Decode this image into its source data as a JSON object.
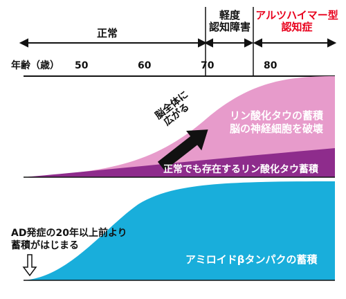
{
  "stages": {
    "normal": "正常",
    "mci": [
      "軽度",
      "認知障害"
    ],
    "ad": [
      "アルツハイマー型",
      "認知症"
    ],
    "ad_color": "#e8001c"
  },
  "axis": {
    "label": "年齢（歳）",
    "ticks": [
      "50",
      "60",
      "70",
      "80"
    ]
  },
  "tau_panel": {
    "top_band_lines": [
      "リン酸化タウの蓄積",
      "脳の神経細胞を破壊"
    ],
    "bottom_band": "正常でも存在するリン酸化タウ蓄積",
    "arrow_label_lines": [
      "脳全体に",
      "広がる"
    ],
    "colors": {
      "upper": "#e79bcb",
      "lower": "#8e2c8c"
    }
  },
  "amyloid_panel": {
    "annotation_lines": [
      "AD発症の20年以上前より",
      "蓄積がはじまる"
    ],
    "band_label": "アミロイドβタンパクの蓄積",
    "color": "#19aedb"
  }
}
